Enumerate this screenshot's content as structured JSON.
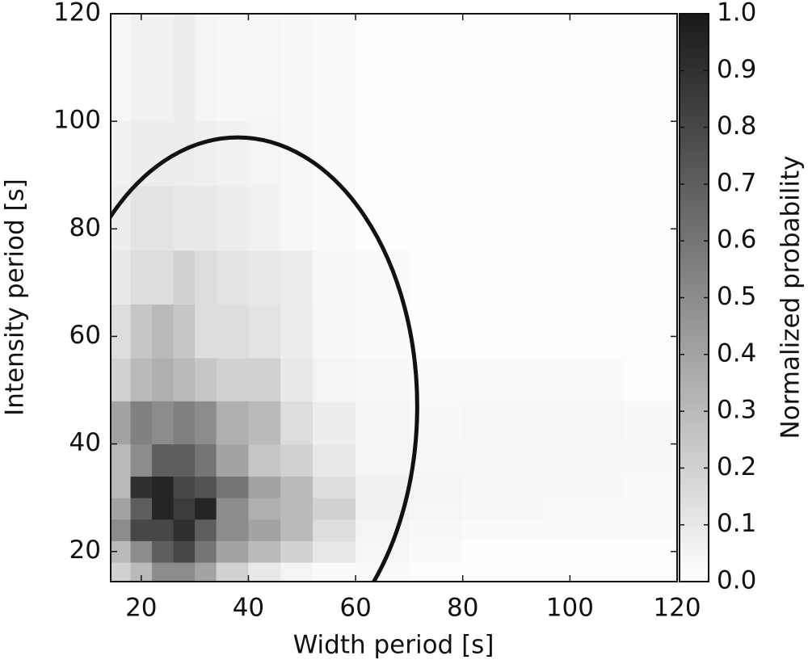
{
  "chart_data": {
    "type": "heatmap",
    "xlabel": "Width period [s]",
    "ylabel": "Intensity period [s]",
    "colorbar_label": "Normalized probability",
    "xlim": [
      14.3,
      120
    ],
    "ylim": [
      14.4,
      120
    ],
    "xticks": [
      20,
      40,
      60,
      80,
      100,
      120
    ],
    "yticks": [
      20,
      40,
      60,
      80,
      100,
      120
    ],
    "clim": [
      0,
      1
    ],
    "cticks": [
      {
        "value": 0,
        "label": "0.0"
      },
      {
        "value": 0.1,
        "label": "0.1"
      },
      {
        "value": 0.2,
        "label": "0.2"
      },
      {
        "value": 0.3,
        "label": "0.3"
      },
      {
        "value": 0.4,
        "label": "0.4"
      },
      {
        "value": 0.5,
        "label": "0.5"
      },
      {
        "value": 0.6,
        "label": "0.6"
      },
      {
        "value": 0.7,
        "label": "0.7"
      },
      {
        "value": 0.8,
        "label": "0.8"
      },
      {
        "value": 0.9,
        "label": "0.9"
      },
      {
        "value": 1,
        "label": "1.0"
      }
    ],
    "x_edges": [
      14.3,
      18,
      22,
      26,
      30,
      34,
      40,
      46,
      52,
      60,
      70,
      80,
      95,
      110,
      120
    ],
    "y_edges": [
      14.4,
      18,
      22,
      26,
      30,
      34,
      40,
      48,
      56,
      66,
      76,
      88,
      100,
      120
    ],
    "z": [
      [
        0.2,
        0.3,
        0.5,
        0.5,
        0.4,
        0.2,
        0.1,
        0.05,
        0.02,
        0.02,
        0.01,
        0.01,
        0.01,
        0.01
      ],
      [
        0.3,
        0.5,
        0.7,
        0.8,
        0.6,
        0.4,
        0.3,
        0.2,
        0.1,
        0.04,
        0.02,
        0.01,
        0.01,
        0.01
      ],
      [
        0.5,
        0.8,
        0.8,
        0.9,
        0.7,
        0.5,
        0.4,
        0.3,
        0.15,
        0.05,
        0.03,
        0.02,
        0.02,
        0.02
      ],
      [
        0.4,
        0.7,
        0.95,
        0.85,
        0.95,
        0.5,
        0.35,
        0.3,
        0.2,
        0.06,
        0.04,
        0.03,
        0.02,
        0.02
      ],
      [
        0.3,
        0.9,
        0.95,
        0.8,
        0.75,
        0.6,
        0.4,
        0.3,
        0.15,
        0.06,
        0.05,
        0.03,
        0.03,
        0.02
      ],
      [
        0.3,
        0.5,
        0.7,
        0.7,
        0.6,
        0.4,
        0.25,
        0.2,
        0.1,
        0.05,
        0.04,
        0.04,
        0.03,
        0.03
      ],
      [
        0.4,
        0.55,
        0.5,
        0.55,
        0.5,
        0.35,
        0.3,
        0.15,
        0.08,
        0.05,
        0.03,
        0.04,
        0.04,
        0.03
      ],
      [
        0.2,
        0.3,
        0.35,
        0.3,
        0.25,
        0.2,
        0.2,
        0.1,
        0.05,
        0.03,
        0.02,
        0.02,
        0.02,
        0.01
      ],
      [
        0.15,
        0.25,
        0.3,
        0.25,
        0.15,
        0.15,
        0.12,
        0.08,
        0.04,
        0.02,
        0.01,
        0.01,
        0.01,
        0.01
      ],
      [
        0.1,
        0.15,
        0.15,
        0.2,
        0.15,
        0.12,
        0.1,
        0.08,
        0.03,
        0.02,
        0.01,
        0.01,
        0.01,
        0.01
      ],
      [
        0.08,
        0.12,
        0.12,
        0.1,
        0.1,
        0.08,
        0.06,
        0.04,
        0.02,
        0.01,
        0.01,
        0.01,
        0.01,
        0.01
      ],
      [
        0.06,
        0.08,
        0.08,
        0.08,
        0.07,
        0.06,
        0.05,
        0.04,
        0.02,
        0.01,
        0.01,
        0.01,
        0.01,
        0.01
      ],
      [
        0.04,
        0.06,
        0.06,
        0.08,
        0.05,
        0.04,
        0.04,
        0.03,
        0.02,
        0.01,
        0.01,
        0.01,
        0.01,
        0.01
      ]
    ],
    "ellipse": {
      "cx": 38,
      "cy": 47,
      "rx": 33.5,
      "ry": 50
    }
  }
}
